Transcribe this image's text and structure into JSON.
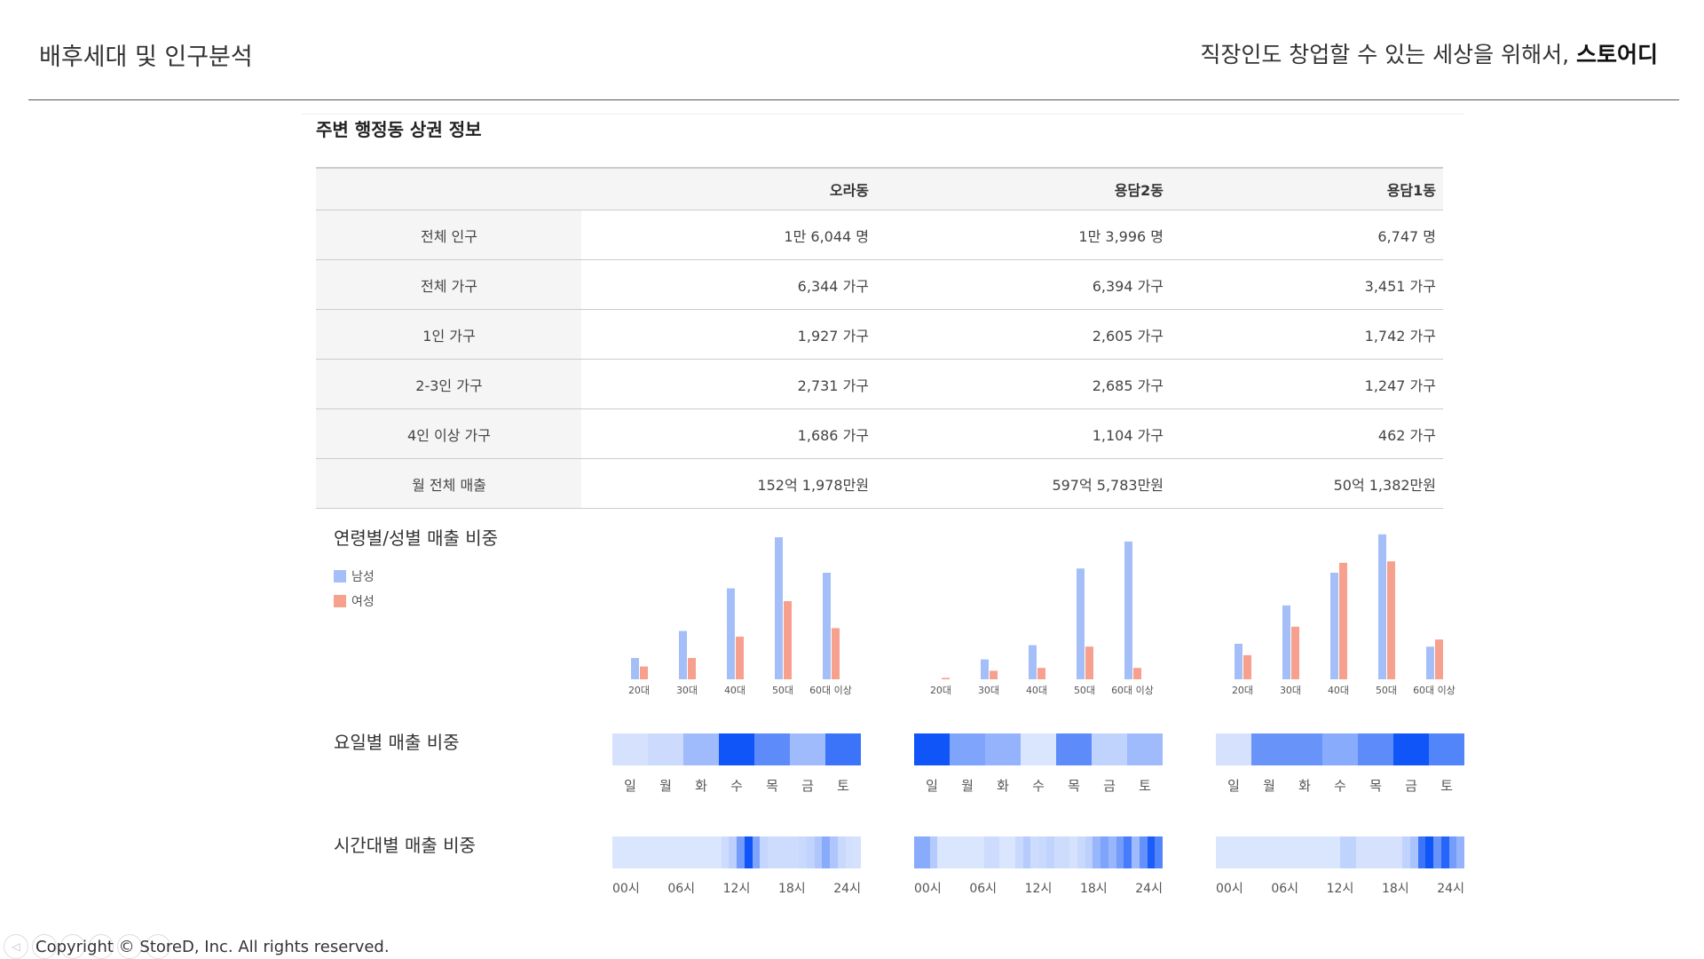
{
  "header": {
    "title": "배후세대 및 인구분석",
    "slogan": "직장인도 창업할 수 있는 세상을 위해서,",
    "brand": "스토어디"
  },
  "section": {
    "title": "주변 행정동 상권 정보"
  },
  "table": {
    "columns": [
      "",
      "오라동",
      "용담2동",
      "용담1동"
    ],
    "rows": [
      {
        "label": "전체 인구",
        "values": [
          "1만 6,044 명",
          "1만 3,996 명",
          "6,747 명"
        ]
      },
      {
        "label": "전체 가구",
        "values": [
          "6,344 가구",
          "6,394 가구",
          "3,451 가구"
        ]
      },
      {
        "label": "1인 가구",
        "values": [
          "1,927 가구",
          "2,605 가구",
          "1,742 가구"
        ]
      },
      {
        "label": "2-3인 가구",
        "values": [
          "2,731 가구",
          "2,685 가구",
          "1,247 가구"
        ]
      },
      {
        "label": "4인 이상 가구",
        "values": [
          "1,686 가구",
          "1,104 가구",
          "462 가구"
        ]
      },
      {
        "label": "월 전체 매출",
        "values": [
          "152억 1,978만원",
          "597억 5,783만원",
          "50억 1,382만원"
        ]
      }
    ]
  },
  "labels": {
    "age_gender": "연령별/성별 매출 비중",
    "weekday": "요일별 매출 비중",
    "hourly": "시간대별 매출 비중"
  },
  "legend": {
    "male": "남성",
    "female": "여성"
  },
  "colors": {
    "male": "#a4bff8",
    "female": "#f7a08d"
  },
  "chart_data": [
    {
      "type": "bar",
      "categories": [
        "20대",
        "30대",
        "40대",
        "50대",
        "60대 이상"
      ],
      "series": [
        {
          "name": "남성",
          "values": [
            15,
            34,
            64,
            100,
            75
          ]
        },
        {
          "name": "여성",
          "values": [
            9,
            15,
            30,
            55,
            36
          ]
        }
      ]
    },
    {
      "type": "bar",
      "categories": [
        "20대",
        "30대",
        "40대",
        "50대",
        "60대 이상"
      ],
      "series": [
        {
          "name": "남성",
          "values": [
            0,
            14,
            24,
            78,
            97
          ]
        },
        {
          "name": "여성",
          "values": [
            1,
            6,
            8,
            23,
            8
          ]
        }
      ]
    },
    {
      "type": "bar",
      "categories": [
        "20대",
        "30대",
        "40대",
        "50대",
        "60대 이상"
      ],
      "series": [
        {
          "name": "남성",
          "values": [
            25,
            52,
            75,
            102,
            23
          ]
        },
        {
          "name": "여성",
          "values": [
            17,
            37,
            82,
            83,
            28
          ]
        }
      ]
    },
    {
      "type": "heatmap",
      "categories": [
        "일",
        "월",
        "화",
        "수",
        "목",
        "금",
        "토"
      ],
      "values": [
        0.1,
        0.15,
        0.35,
        1.0,
        0.65,
        0.35,
        0.8
      ]
    },
    {
      "type": "heatmap",
      "categories": [
        "일",
        "월",
        "화",
        "수",
        "목",
        "금",
        "토"
      ],
      "values": [
        1.0,
        0.5,
        0.4,
        0.08,
        0.65,
        0.2,
        0.35
      ]
    },
    {
      "type": "heatmap",
      "categories": [
        "일",
        "월",
        "화",
        "수",
        "목",
        "금",
        "토"
      ],
      "values": [
        0.1,
        0.6,
        0.6,
        0.45,
        0.65,
        1.0,
        0.7
      ]
    },
    {
      "type": "heatmap",
      "tick_labels": [
        "00시",
        "06시",
        "12시",
        "18시",
        "24시"
      ],
      "values": [
        0.08,
        0.08,
        0.08,
        0.08,
        0.08,
        0.08,
        0.08,
        0.08,
        0.08,
        0.08,
        0.08,
        0.08,
        0.08,
        0.08,
        0.14,
        0.22,
        0.55,
        1.0,
        0.5,
        0.18,
        0.14,
        0.14,
        0.14,
        0.14,
        0.16,
        0.2,
        0.28,
        0.45,
        0.28,
        0.16,
        0.12,
        0.1
      ]
    },
    {
      "type": "heatmap",
      "tick_labels": [
        "00시",
        "06시",
        "12시",
        "18시",
        "24시"
      ],
      "values": [
        0.45,
        0.45,
        0.25,
        0.08,
        0.08,
        0.08,
        0.08,
        0.08,
        0.08,
        0.14,
        0.14,
        0.08,
        0.08,
        0.16,
        0.24,
        0.14,
        0.16,
        0.2,
        0.14,
        0.14,
        0.1,
        0.16,
        0.22,
        0.38,
        0.5,
        0.38,
        0.55,
        0.75,
        0.35,
        0.62,
        0.95,
        0.7
      ]
    },
    {
      "type": "heatmap",
      "tick_labels": [
        "00시",
        "06시",
        "12시",
        "18시",
        "24시"
      ],
      "values": [
        0.08,
        0.08,
        0.08,
        0.08,
        0.08,
        0.08,
        0.08,
        0.08,
        0.08,
        0.08,
        0.08,
        0.08,
        0.08,
        0.08,
        0.08,
        0.08,
        0.2,
        0.2,
        0.1,
        0.1,
        0.1,
        0.1,
        0.1,
        0.1,
        0.2,
        0.3,
        0.8,
        1.0,
        0.6,
        0.9,
        0.55,
        0.4
      ]
    }
  ],
  "footer": {
    "copyright": "Copyright © StoreD, Inc. All rights reserved."
  }
}
